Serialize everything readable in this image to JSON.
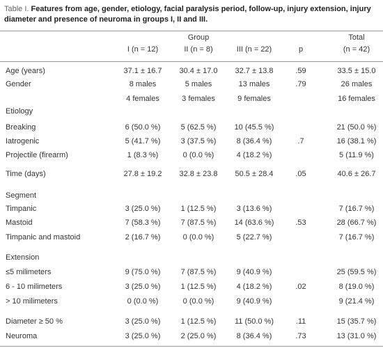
{
  "caption": {
    "number": "Table I.",
    "text": "Features from age, gender, etiology, facial paralysis period, follow-up, injury extension, injury diameter and presence of neuroma in groups I, II and III."
  },
  "table": {
    "group_header": "Group",
    "columns": [
      "I (n = 12)",
      "II (n = 8)",
      "III (n = 22)",
      "p"
    ],
    "total_header": [
      "Total",
      "(n = 42)"
    ],
    "rows": [
      {
        "label": "Age (years)",
        "groups": [
          "37.1 ± 16.7",
          "30.4 ± 17.0",
          "32.7 ± 13.8"
        ],
        "p": ".59",
        "total": "33.5 ± 15.0"
      },
      {
        "label": "Gender",
        "groups": [
          "8 males",
          "5 males",
          "13 males"
        ],
        "p": ".79",
        "total": "26 males"
      },
      {
        "groups": [
          "4 females",
          "3 females",
          "9 females"
        ],
        "total": "16 females"
      },
      {
        "label": "Etiology"
      },
      {
        "label": "Breaking",
        "groups": [
          "6 (50.0 %)",
          "5 (62.5 %)",
          "10 (45.5 %)"
        ],
        "total": "21 (50.0 %)"
      },
      {
        "label": "Iatrogenic",
        "groups": [
          "5 (41.7 %)",
          "3 (37.5 %)",
          "8 (36.4 %)"
        ],
        "p": ".7",
        "total": "16 (38.1 %)"
      },
      {
        "label": "Projectile (firearm)",
        "groups": [
          "1 (8.3 %)",
          "0 (0.0 %)",
          "4 (18.2 %)"
        ],
        "total": "5 (11.9 %)"
      },
      {
        "label": "Time (days)",
        "groups": [
          "27.8 ± 19.2",
          "32.8 ± 23.8",
          "50.5 ± 28.4"
        ],
        "p": ".05",
        "total": "40.6 ± 26.7"
      },
      {
        "label": "Segment"
      },
      {
        "label": "Timpanic",
        "groups": [
          "3 (25.0 %)",
          "1 (12.5 %)",
          "3 (13.6 %)"
        ],
        "total": "7 (16.7 %)"
      },
      {
        "label": "Mastoid",
        "groups": [
          "7 (58.3 %)",
          "7 (87.5 %)",
          "14 (63.6 %)"
        ],
        "p": ".53",
        "total": "28 (66.7 %)"
      },
      {
        "label": "Timpanic and mastoid",
        "groups": [
          "2 (16.7 %)",
          "0 (0.0 %)",
          "5 (22.7 %)"
        ],
        "total": "7 (16.7 %)"
      },
      {
        "label": "Extension"
      },
      {
        "label": "≤5 milimeters",
        "groups": [
          "9 (75.0 %)",
          "7 (87.5 %)",
          "9 (40.9 %)"
        ],
        "total": "25 (59.5 %)"
      },
      {
        "label": "6 - 10 milimeters",
        "groups": [
          "3 (25.0 %)",
          "1 (12.5 %)",
          "4 (18.2 %)"
        ],
        "p": ".02",
        "total": "8 (19.0 %)"
      },
      {
        "label": "> 10 milimeters",
        "groups": [
          "0 (0.0 %)",
          "0 (0.0 %)",
          "9 (40.9 %)"
        ],
        "total": "9 (21.4 %)"
      },
      {
        "label": "Diameter ≥ 50 %",
        "groups": [
          "3 (25.0 %)",
          "1 (12.5 %)",
          "11 (50.0 %)"
        ],
        "p": ".11",
        "total": "15 (35.7 %)"
      },
      {
        "label": "Neuroma",
        "groups": [
          "3 (25.0 %)",
          "2 (25.0 %)",
          "8 (36.4 %)"
        ],
        "p": ".73",
        "total": "13 (31.0 %)"
      }
    ]
  }
}
